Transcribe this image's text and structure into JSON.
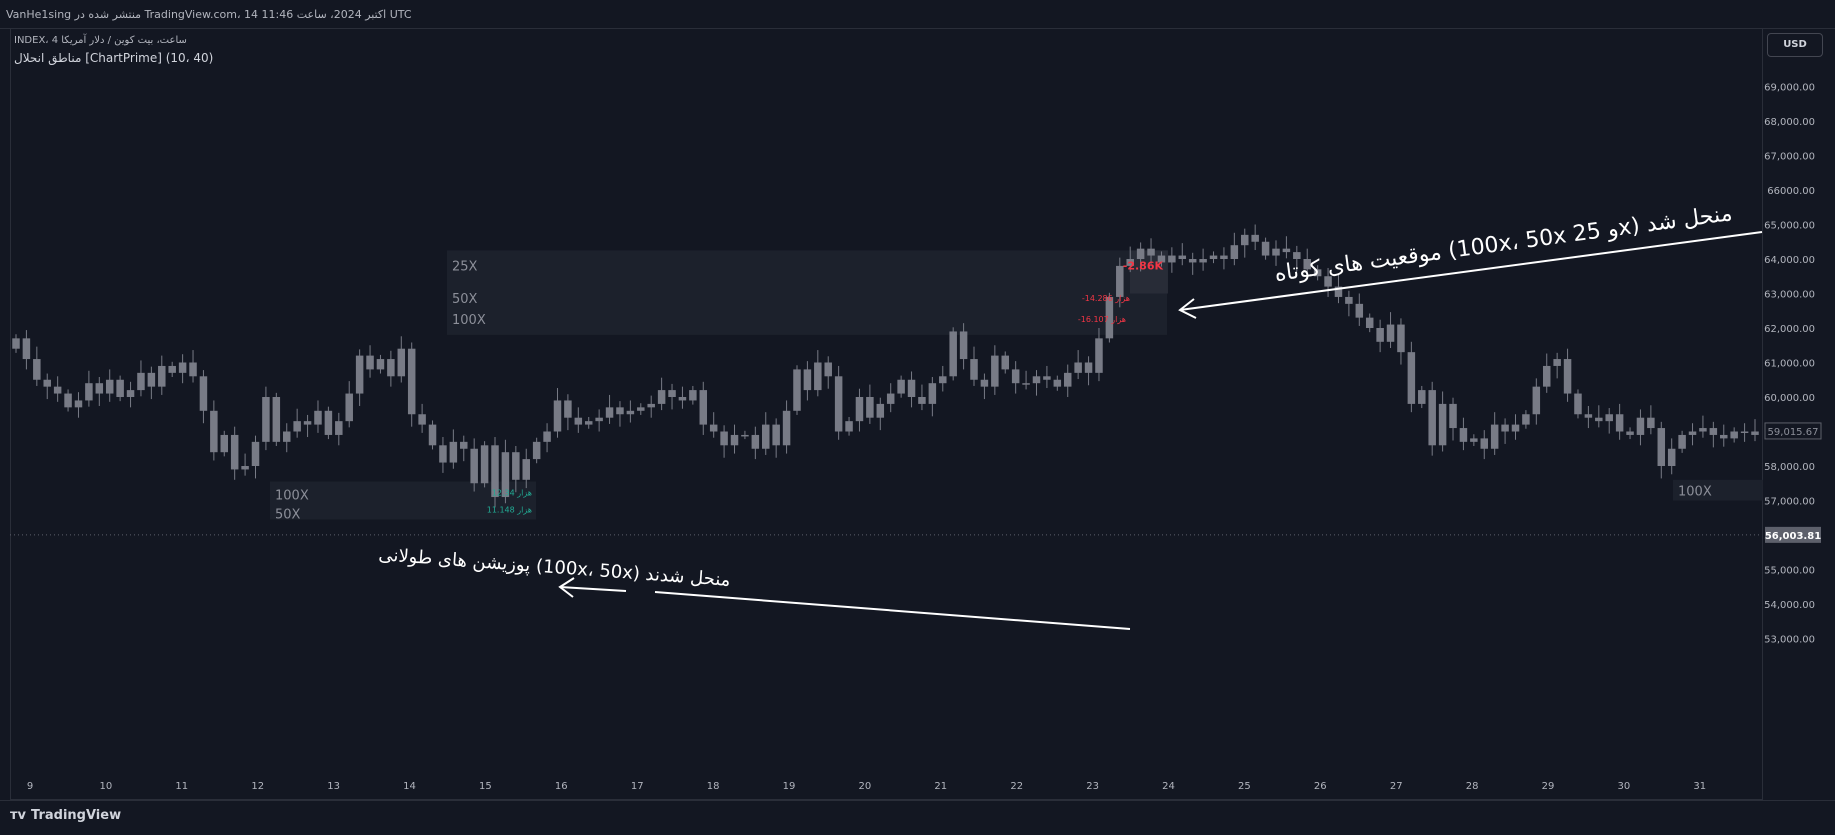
{
  "header": {
    "published": "VanHe1sing منتشر شده در TradingView.com، 14 اکتبر 2024، ساعت 11:46 UTC",
    "symbol_line": "INDEX، 4 ساعت، بیت کوین / دلار آمریکا",
    "indicator_line": "مناطق انحلال [ChartPrime] (10، 40)",
    "currency": "USD"
  },
  "footer": {
    "brand": "TradingView"
  },
  "colors": {
    "background": "#131722",
    "candle": "#787b86",
    "zone": "#1e222d",
    "short_liq_text": "#f23645",
    "long_liq_text": "#22ab94",
    "annotation": "#ffffff"
  },
  "zones": {
    "short": {
      "labels": [
        "25X",
        "50X",
        "100X"
      ],
      "values": [
        "-2.86K",
        "-14.286 هزار",
        "-16.107 هزار"
      ]
    },
    "long": {
      "labels": [
        "100X",
        "50X"
      ],
      "values": [
        "12.34 هزار",
        "11.148 هزار"
      ]
    },
    "right_label": "100X"
  },
  "annotations": {
    "short_text": "موقعیت های کوتاه (100x، 50x و 25x) منحل شد",
    "long_text": "پوزیشن های طولانی (100x، 50x) منحل شدند"
  },
  "chart_data": {
    "type": "candlestick",
    "interval": "4 hours",
    "x_tick_labels": [
      "9",
      "10",
      "11",
      "12",
      "13",
      "14",
      "15",
      "16",
      "17",
      "18",
      "19",
      "20",
      "21",
      "22",
      "23",
      "24",
      "25",
      "26",
      "27",
      "28",
      "29",
      "30",
      "31"
    ],
    "y_tick_labels": [
      "69,000.00",
      "68,000.00",
      "67,000.00",
      "66000.00",
      "65,000.00",
      "64,000.00",
      "63,000.00",
      "62,000.00",
      "61,000.00",
      "60,000.00",
      "59,000.00",
      "58,000.00",
      "57,000.00",
      "56,000.00",
      "55,000.00",
      "54,000.00",
      "53,000.00"
    ],
    "ylim": [
      52500,
      69500
    ],
    "price_marker": "56,003.81",
    "last_price": "59,015.67",
    "dotted_level": 56003.81,
    "closes": [
      61700,
      61100,
      60500,
      60300,
      60100,
      59700,
      59900,
      60400,
      60100,
      60500,
      60000,
      60200,
      60700,
      60300,
      60900,
      60700,
      61000,
      60600,
      59600,
      58400,
      58900,
      57900,
      58000,
      58700,
      60000,
      58700,
      59000,
      59300,
      59200,
      59600,
      58900,
      59300,
      60100,
      61200,
      60800,
      61100,
      60600,
      61400,
      59500,
      59200,
      58600,
      58100,
      58700,
      58500,
      57500,
      58600,
      57100,
      58400,
      57600,
      58200,
      58700,
      59000,
      59900,
      59400,
      59200,
      59300,
      59400,
      59700,
      59500,
      59600,
      59700,
      59800,
      60200,
      60000,
      59900,
      60200,
      59200,
      59000,
      58600,
      58900,
      58900,
      58500,
      59200,
      58600,
      59600,
      60800,
      60200,
      61000,
      60600,
      59000,
      59300,
      60000,
      59400,
      59800,
      60100,
      60500,
      60000,
      59800,
      60400,
      60600,
      61900,
      61100,
      60500,
      60300,
      61200,
      60800,
      60400,
      60400,
      60600,
      60500,
      60300,
      60700,
      61000,
      60700,
      61700,
      62900,
      63800,
      64000,
      64300,
      64100,
      63900,
      64100,
      64000,
      63900,
      64000,
      64100,
      64000,
      64400,
      64700,
      64500,
      64100,
      64300,
      64200,
      64000,
      63700,
      63500,
      63200,
      62900,
      62700,
      62300,
      62000,
      61600,
      62100,
      61300,
      59800,
      60200,
      58600,
      59800,
      59100,
      58700,
      58800,
      58500,
      59200,
      59000,
      59200,
      59500,
      60300,
      60900,
      61100,
      60100,
      59500,
      59400,
      59300,
      59500,
      59000,
      58900,
      59400,
      59100,
      58000,
      58500,
      58900,
      59000,
      59100,
      58900,
      58800,
      59000,
      59000,
      58900
    ]
  }
}
